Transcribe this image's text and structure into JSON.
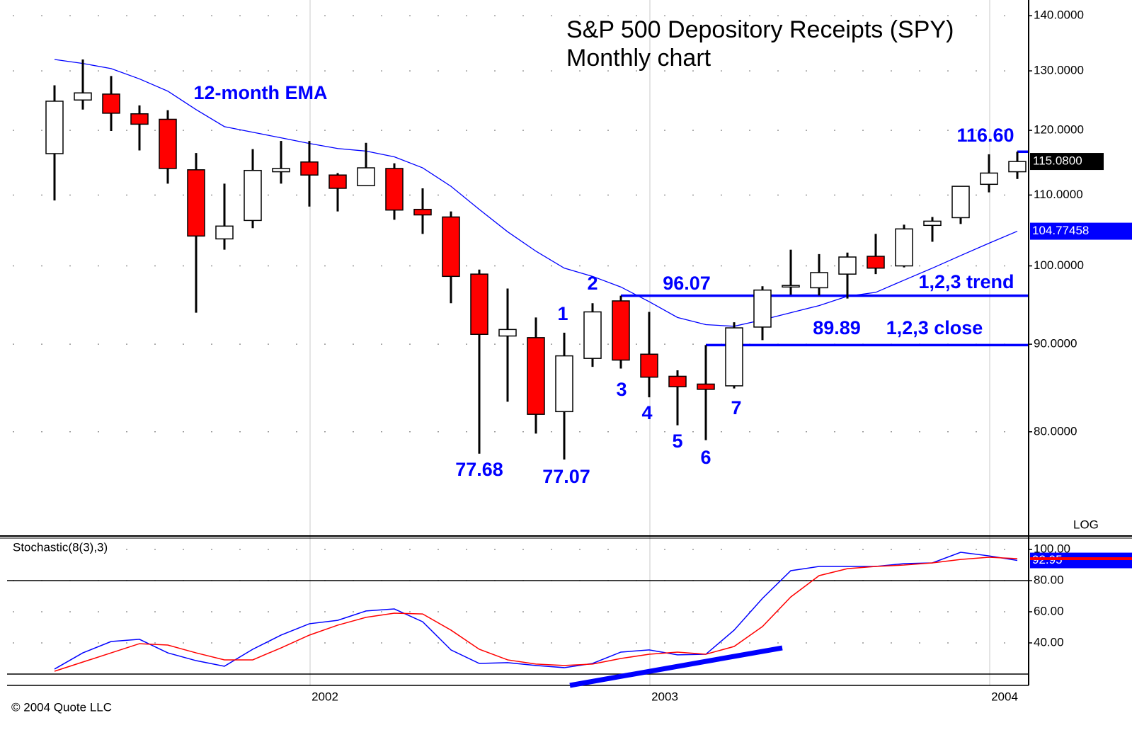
{
  "chart_data": [
    {
      "type": "candlestick",
      "title": "S&P 500 Depository Receipts (SPY)",
      "subtitle": "Monthly chart",
      "log_scale": true,
      "scale_label": "LOG",
      "categories": [
        null,
        null,
        null,
        null,
        null,
        null,
        null,
        null,
        null,
        "2002",
        null,
        null,
        null,
        null,
        null,
        null,
        null,
        null,
        null,
        null,
        null,
        "2003",
        null,
        null,
        null,
        null,
        null,
        null,
        null,
        null,
        null,
        null,
        null,
        "2004",
        null
      ],
      "ylim": [
        70,
        143
      ],
      "yticks": [
        {
          "value": 140,
          "label": "140.0000"
        },
        {
          "value": 130,
          "label": "130.0000"
        },
        {
          "value": 120,
          "label": "120.0000"
        },
        {
          "value": 110,
          "label": "110.0000"
        },
        {
          "value": 100,
          "label": "100.0000"
        },
        {
          "value": 90,
          "label": "90.0000"
        },
        {
          "value": 80,
          "label": "80.0000"
        }
      ],
      "grid": true,
      "up_color": "#ffffff",
      "down_color": "#ff0000",
      "candles": [
        {
          "open": 116.3,
          "high": 127.5,
          "low": 109.2,
          "close": 124.8
        },
        {
          "open": 125.0,
          "high": 132.0,
          "low": 123.4,
          "close": 126.2
        },
        {
          "open": 126.0,
          "high": 129.1,
          "low": 119.9,
          "close": 122.8
        },
        {
          "open": 122.7,
          "high": 124.1,
          "low": 116.8,
          "close": 121.0
        },
        {
          "open": 121.8,
          "high": 123.3,
          "low": 111.7,
          "close": 114.0
        },
        {
          "open": 113.8,
          "high": 116.4,
          "low": 93.9,
          "close": 104.1
        },
        {
          "open": 103.7,
          "high": 111.7,
          "low": 102.2,
          "close": 105.5
        },
        {
          "open": 106.3,
          "high": 117.0,
          "low": 105.2,
          "close": 113.7
        },
        {
          "open": 113.5,
          "high": 118.3,
          "low": 111.7,
          "close": 114.0
        },
        {
          "open": 115.0,
          "high": 118.3,
          "low": 108.3,
          "close": 113.0
        },
        {
          "open": 113.0,
          "high": 113.3,
          "low": 107.6,
          "close": 111.0
        },
        {
          "open": 111.4,
          "high": 118.0,
          "low": 111.4,
          "close": 114.1
        },
        {
          "open": 114.0,
          "high": 114.8,
          "low": 106.4,
          "close": 107.8
        },
        {
          "open": 107.9,
          "high": 111.0,
          "low": 104.4,
          "close": 107.1
        },
        {
          "open": 106.8,
          "high": 107.6,
          "low": 95.1,
          "close": 98.6
        },
        {
          "open": 98.9,
          "high": 99.5,
          "low": 77.68,
          "close": 91.2
        },
        {
          "open": 91.0,
          "high": 97.0,
          "low": 83.3,
          "close": 91.8
        },
        {
          "open": 90.8,
          "high": 93.3,
          "low": 79.8,
          "close": 81.9
        },
        {
          "open": 82.2,
          "high": 91.4,
          "low": 77.07,
          "close": 88.6
        },
        {
          "open": 88.3,
          "high": 95.1,
          "low": 87.3,
          "close": 94.0
        },
        {
          "open": 95.4,
          "high": 96.07,
          "low": 87.1,
          "close": 88.1
        },
        {
          "open": 88.8,
          "high": 94.0,
          "low": 83.8,
          "close": 86.1
        },
        {
          "open": 86.2,
          "high": 86.9,
          "low": 80.7,
          "close": 85.0
        },
        {
          "open": 85.3,
          "high": 89.89,
          "low": 79.1,
          "close": 84.7
        },
        {
          "open": 85.1,
          "high": 92.7,
          "low": 84.8,
          "close": 92.0
        },
        {
          "open": 92.1,
          "high": 97.3,
          "low": 90.5,
          "close": 96.8
        },
        {
          "open": 97.2,
          "high": 102.2,
          "low": 96.2,
          "close": 97.4
        },
        {
          "open": 97.1,
          "high": 101.6,
          "low": 96.1,
          "close": 99.1
        },
        {
          "open": 98.9,
          "high": 101.8,
          "low": 95.7,
          "close": 101.2
        },
        {
          "open": 101.3,
          "high": 104.4,
          "low": 98.9,
          "close": 99.7
        },
        {
          "open": 100.0,
          "high": 105.7,
          "low": 99.8,
          "close": 105.1
        },
        {
          "open": 105.6,
          "high": 106.8,
          "low": 103.3,
          "close": 106.2
        },
        {
          "open": 106.7,
          "high": 111.3,
          "low": 105.8,
          "close": 111.3
        },
        {
          "open": 111.6,
          "high": 116.2,
          "low": 110.4,
          "close": 113.3
        },
        {
          "open": 113.5,
          "high": 116.6,
          "low": 112.4,
          "close": 115.08,
          "close_label": "115.0800"
        }
      ],
      "ema": {
        "name": "12-month EMA",
        "color": "#0000ff",
        "values": [
          132.0,
          131.3,
          130.4,
          128.6,
          126.5,
          123.4,
          120.6,
          119.7,
          118.8,
          117.9,
          117.1,
          116.7,
          115.8,
          114.1,
          111.3,
          107.9,
          104.7,
          102.0,
          99.7,
          98.6,
          97.2,
          95.3,
          93.3,
          92.4,
          92.2,
          93.0,
          93.9,
          94.8,
          96.0,
          96.5,
          98.1,
          99.7,
          101.4,
          103.1,
          104.77458
        ],
        "value_labels": [
          null,
          null,
          null,
          null,
          null,
          null,
          null,
          null,
          null,
          null,
          null,
          null,
          null,
          null,
          null,
          null,
          null,
          null,
          null,
          null,
          null,
          null,
          null,
          null,
          null,
          null,
          null,
          null,
          null,
          null,
          null,
          null,
          null,
          null,
          "104.77458"
        ]
      },
      "levels": [
        96.07,
        89.89,
        116.6
      ],
      "level_color": "#0000ff",
      "annotations": [
        "1",
        "2",
        "3",
        "4",
        "5",
        "6",
        "7",
        "77.68",
        "77.07",
        "96.07",
        "89.89",
        "1,2,3 close",
        "1,2,3 trend",
        "116.60"
      ]
    },
    {
      "type": "line",
      "title": "Stochastic(8(3),3)",
      "ylim": [
        12.7,
        107.3
      ],
      "yticks": [
        {
          "value": 100,
          "label": "100.00"
        },
        {
          "value": 80,
          "label": "80.00"
        },
        {
          "value": 60,
          "label": "60.00"
        },
        {
          "value": 40,
          "label": "40.00"
        }
      ],
      "reference_lines": [
        20,
        80
      ],
      "series": [
        {
          "color": "#0000ff",
          "values": [
            23.2,
            33.6,
            40.9,
            42.3,
            33.6,
            28.6,
            25.0,
            35.9,
            45.0,
            52.3,
            54.5,
            60.5,
            61.8,
            53.6,
            35.5,
            26.8,
            27.3,
            25.5,
            24.1,
            26.8,
            34.1,
            35.5,
            32.3,
            32.7,
            48.2,
            68.6,
            86.4,
            89.1,
            89.1,
            89.1,
            90.9,
            91.4,
            98.2,
            95.9,
            92.95
          ],
          "value_labels": [
            null,
            null,
            null,
            null,
            null,
            null,
            null,
            null,
            null,
            null,
            null,
            null,
            null,
            null,
            null,
            null,
            null,
            null,
            null,
            null,
            null,
            null,
            null,
            null,
            null,
            null,
            null,
            null,
            null,
            null,
            null,
            null,
            null,
            null,
            "92.95"
          ]
        },
        {
          "color": "#ff0000",
          "values": [
            21.8,
            27.7,
            33.6,
            39.5,
            38.6,
            33.6,
            29.1,
            29.1,
            36.8,
            45.0,
            51.4,
            56.4,
            59.1,
            58.6,
            48.2,
            35.9,
            29.1,
            26.4,
            25.5,
            26.4,
            30.0,
            32.7,
            34.1,
            32.7,
            37.7,
            50.5,
            69.5,
            83.2,
            87.7,
            89.1,
            90.0,
            91.4,
            93.6,
            95.0,
            94.1
          ]
        }
      ],
      "trendline": {
        "x": [
          18.2,
          25.7
        ],
        "values": [
          12.7,
          36.8
        ],
        "color": "#0000ff"
      }
    }
  ],
  "footer": "© 2004 Quote LLC"
}
